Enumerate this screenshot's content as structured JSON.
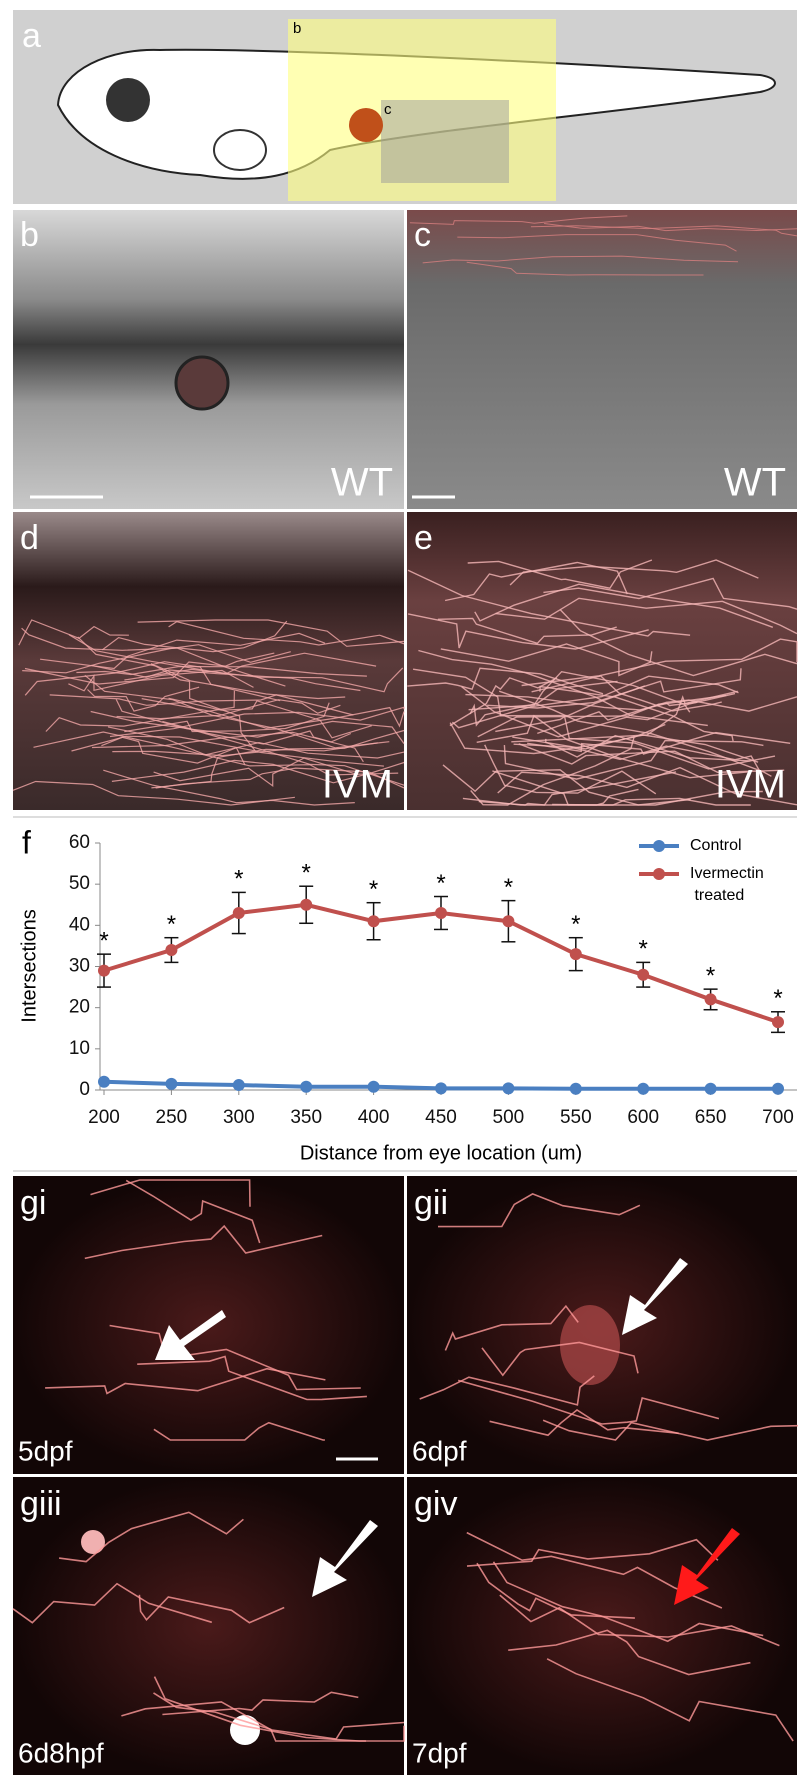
{
  "panels": {
    "a": {
      "label": "a",
      "box_labels": [
        "b",
        "c"
      ]
    },
    "b": {
      "label": "b",
      "condition": "WT"
    },
    "c": {
      "label": "c",
      "condition": "WT"
    },
    "d": {
      "label": "d",
      "condition": "IVM"
    },
    "e": {
      "label": "e",
      "condition": "IVM"
    },
    "gi": {
      "label": "gi",
      "age": "5dpf"
    },
    "gii": {
      "label": "gii",
      "age": "6dpf"
    },
    "giii": {
      "label": "giii",
      "age": "6d8hpf"
    },
    "giv": {
      "label": "giv",
      "age": "7dpf"
    }
  },
  "chart_data": {
    "type": "line",
    "panel_label": "f",
    "x_label": "Distance from eye location (um)",
    "y_label": "Intersections",
    "x": [
      200,
      250,
      300,
      350,
      400,
      450,
      500,
      550,
      600,
      650,
      700
    ],
    "series": [
      {
        "name": "Control",
        "color": "#4a7fc1",
        "values": [
          2,
          1.5,
          1.2,
          0.8,
          0.8,
          0.4,
          0.4,
          0.3,
          0.3,
          0.3,
          0.3
        ]
      },
      {
        "name": "Ivermectin treated",
        "color": "#c0504d",
        "values": [
          29,
          34,
          43,
          45,
          41,
          43,
          41,
          33,
          28,
          22,
          16.5
        ],
        "errors": [
          4,
          3,
          5,
          4.5,
          4.5,
          4,
          5,
          4,
          3,
          2.5,
          2.5
        ],
        "annotations": [
          "*",
          "*",
          "*",
          "*",
          "*",
          "*",
          "*",
          "*",
          "*",
          "*",
          "*"
        ]
      }
    ],
    "xlim": [
      200,
      700
    ],
    "xticks": [
      200,
      250,
      300,
      350,
      400,
      450,
      500,
      550,
      600,
      650,
      700
    ],
    "ylim": [
      0,
      60
    ],
    "yticks": [
      0,
      10,
      20,
      30,
      40,
      50,
      60
    ],
    "legend": "top-right"
  }
}
